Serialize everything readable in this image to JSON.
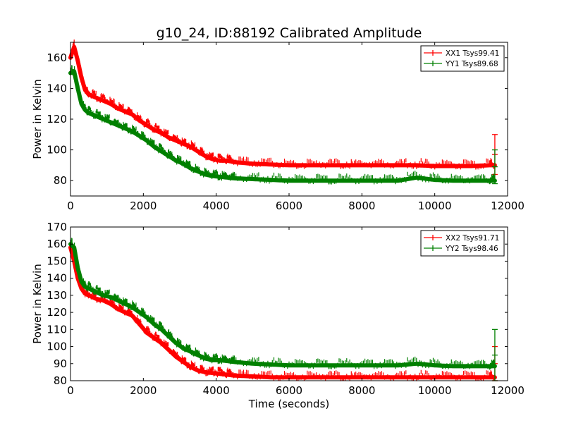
{
  "figure": {
    "title": "g10_24, ID:88192 Calibrated Amplitude"
  },
  "chart_data": [
    {
      "type": "line",
      "title": "g10_24, ID:88192 Calibrated Amplitude",
      "xlabel": "",
      "ylabel": "Power in Kelvin",
      "xlim": [
        0,
        12000
      ],
      "ylim": [
        70,
        170
      ],
      "xticks": [
        "0",
        "2000",
        "4000",
        "6000",
        "8000",
        "10000",
        "12000"
      ],
      "yticks": [
        "80",
        "100",
        "120",
        "140",
        "160"
      ],
      "ytick_values": [
        80,
        100,
        120,
        140,
        160
      ],
      "grid": false,
      "legend_position": "top-right",
      "series": [
        {
          "name": "XX1 Tsys99.41",
          "color": "#ff0000",
          "x": [
            0,
            100,
            200,
            300,
            400,
            500,
            700,
            900,
            1100,
            1300,
            1500,
            1700,
            1900,
            2100,
            2300,
            2500,
            2700,
            2900,
            3100,
            3300,
            3500,
            3700,
            3900,
            4100,
            4300,
            4500,
            5000,
            5500,
            6000,
            6500,
            7000,
            7500,
            8000,
            8500,
            9000,
            9500,
            10000,
            10500,
            11000,
            11500,
            11650
          ],
          "y": [
            160,
            167,
            158,
            147,
            139,
            136,
            134,
            132,
            130,
            127,
            125,
            123,
            119,
            116,
            113,
            111,
            108,
            106,
            104,
            102,
            99,
            96,
            94,
            93,
            93,
            92,
            91,
            90.5,
            90,
            90,
            90,
            90,
            90,
            90,
            90,
            90,
            89.5,
            89.5,
            89.5,
            90,
            90
          ],
          "error_bar": {
            "x": 11650,
            "low": 84,
            "high": 110
          }
        },
        {
          "name": "YY1 Tsys89.68",
          "color": "#008000",
          "x": [
            0,
            100,
            200,
            300,
            400,
            500,
            700,
            900,
            1100,
            1300,
            1500,
            1700,
            1900,
            2100,
            2300,
            2500,
            2700,
            2900,
            3100,
            3300,
            3500,
            3700,
            3900,
            4100,
            4300,
            4500,
            5000,
            5500,
            6000,
            6500,
            7000,
            7500,
            8000,
            8500,
            9000,
            9500,
            10000,
            10500,
            11000,
            11500,
            11650
          ],
          "y": [
            150,
            151,
            140,
            130,
            126,
            124,
            122,
            120,
            118,
            116,
            114,
            112,
            109,
            106,
            102,
            99,
            96,
            93,
            91,
            88,
            86,
            84,
            83,
            82.5,
            82,
            81.5,
            81,
            80.5,
            80,
            80,
            80,
            80,
            80,
            80,
            80,
            82,
            80.5,
            80,
            80,
            80,
            80
          ],
          "error_bar": {
            "x": 11650,
            "low": 78,
            "high": 100
          }
        }
      ]
    },
    {
      "type": "line",
      "title": "",
      "xlabel": "Time (seconds)",
      "ylabel": "Power in Kelvin",
      "xlim": [
        0,
        12000
      ],
      "ylim": [
        80,
        170
      ],
      "xticks": [
        "0",
        "2000",
        "4000",
        "6000",
        "8000",
        "10000",
        "12000"
      ],
      "yticks": [
        "80",
        "90",
        "100",
        "110",
        "120",
        "130",
        "140",
        "150",
        "160",
        "170"
      ],
      "ytick_values": [
        80,
        90,
        100,
        110,
        120,
        130,
        140,
        150,
        160,
        170
      ],
      "grid": false,
      "legend_position": "top-right",
      "series": [
        {
          "name": "XX2 Tsys91.71",
          "color": "#ff0000",
          "x": [
            0,
            100,
            200,
            300,
            400,
            500,
            700,
            900,
            1100,
            1300,
            1500,
            1700,
            1900,
            2100,
            2300,
            2500,
            2700,
            2900,
            3100,
            3300,
            3500,
            3700,
            3900,
            4100,
            4300,
            4500,
            5000,
            5500,
            6000,
            6500,
            7000,
            7500,
            8000,
            8500,
            9000,
            9500,
            10000,
            10500,
            11000,
            11500,
            11650
          ],
          "y": [
            158,
            150,
            140,
            134,
            131,
            130,
            128,
            127,
            125,
            122,
            120,
            118,
            113,
            108,
            105,
            102,
            98,
            94,
            91,
            88,
            86,
            85,
            84.5,
            84,
            83.5,
            83,
            82.5,
            82,
            82,
            82,
            82,
            82,
            82,
            82,
            82,
            82,
            82,
            82,
            82,
            82,
            82
          ],
          "error_bar": {
            "x": 11650,
            "low": 80,
            "high": 100
          }
        },
        {
          "name": "YY2 Tsys98.46",
          "color": "#008000",
          "x": [
            0,
            100,
            200,
            300,
            400,
            500,
            700,
            900,
            1100,
            1300,
            1500,
            1700,
            1900,
            2100,
            2300,
            2500,
            2700,
            2900,
            3100,
            3300,
            3500,
            3700,
            3900,
            4100,
            4300,
            4500,
            5000,
            5500,
            6000,
            6500,
            7000,
            7500,
            8000,
            8500,
            9000,
            9500,
            10000,
            10500,
            11000,
            11500,
            11650
          ],
          "y": [
            160,
            158,
            146,
            138,
            135,
            134,
            132,
            130,
            129,
            127,
            125,
            123,
            120,
            117,
            113,
            110,
            106,
            102,
            99,
            97,
            95,
            93,
            92,
            92,
            91.5,
            91,
            90,
            89.5,
            89,
            89,
            89,
            89,
            89,
            89,
            89,
            90,
            89,
            88.5,
            88.5,
            88.5,
            88.5
          ],
          "error_bar": {
            "x": 11650,
            "low": 80,
            "high": 110
          }
        }
      ]
    }
  ]
}
